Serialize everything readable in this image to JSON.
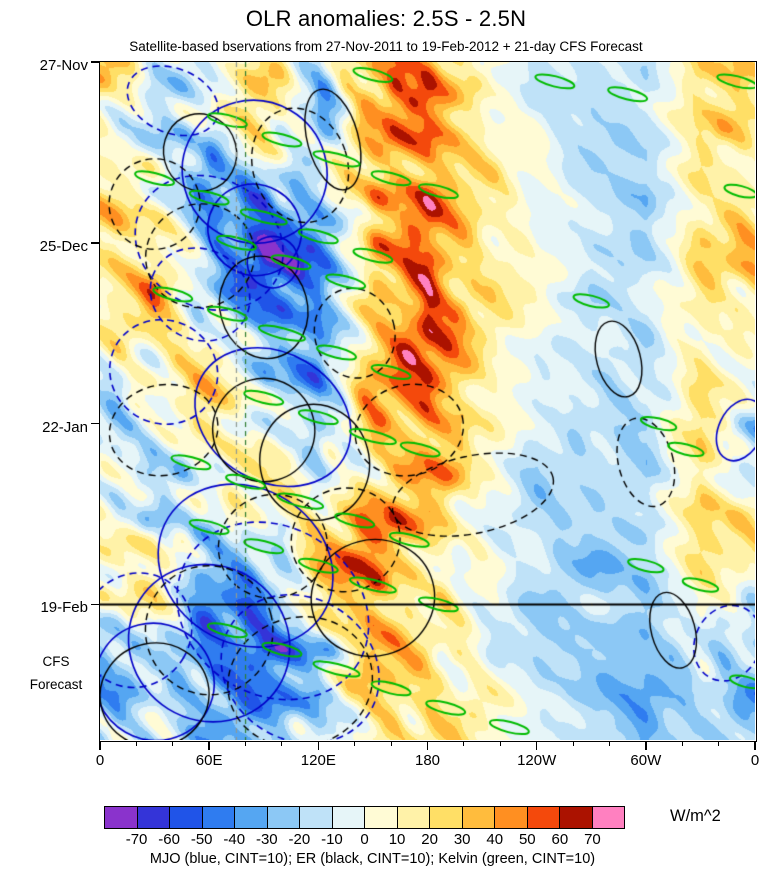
{
  "title": "OLR anomalies: 2.5S - 2.5N",
  "subtitle": "Satellite-based bservations from 27-Nov-2011 to 19-Feb-2012 + 21-day CFS Forecast",
  "legend_note": "MJO (blue, CINT=10); ER (black, CINT=10); Kelvin (green, CINT=10)",
  "colorbar": {
    "unit": "W/m^2",
    "tick_labels": [
      "-70",
      "-60",
      "-50",
      "-40",
      "-30",
      "-20",
      "-10",
      "0",
      "10",
      "20",
      "30",
      "40",
      "50",
      "60",
      "70"
    ],
    "colors": [
      "#8a33cc",
      "#3434d8",
      "#2054e8",
      "#2f7cf0",
      "#55a6f2",
      "#8cc8f5",
      "#bfe2f8",
      "#e6f5f8",
      "#fffbd5",
      "#fff2a8",
      "#ffdf66",
      "#ffbc3d",
      "#ff8f21",
      "#f4490c",
      "#ab1200",
      "#ff80c0"
    ]
  },
  "chart_data": {
    "type": "heatmap",
    "x_range": [
      0,
      360
    ],
    "t_range": [
      0,
      105
    ],
    "x_ticks": [
      {
        "pos": 0,
        "label": "0"
      },
      {
        "pos": 60,
        "label": "60E"
      },
      {
        "pos": 120,
        "label": "120E"
      },
      {
        "pos": 180,
        "label": "180"
      },
      {
        "pos": 240,
        "label": "120W"
      },
      {
        "pos": 300,
        "label": "60W"
      },
      {
        "pos": 360,
        "label": "0"
      }
    ],
    "y_ticks": [
      {
        "day": 0,
        "label": "27-Nov"
      },
      {
        "day": 28,
        "label": "25-Dec"
      },
      {
        "day": 56,
        "label": "22-Jan"
      },
      {
        "day": 84,
        "label": "19-Feb"
      }
    ],
    "forecast_start_day": 84,
    "forecast_label": [
      "CFS",
      "Forecast"
    ],
    "levels": [
      -70,
      -60,
      -50,
      -40,
      -30,
      -20,
      -10,
      0,
      10,
      20,
      30,
      40,
      50,
      60,
      70
    ],
    "grid": {
      "lons": [
        0,
        30,
        60,
        90,
        120,
        150,
        180,
        210,
        240,
        270,
        300,
        330,
        360
      ],
      "days": [
        0,
        7,
        14,
        21,
        28,
        35,
        42,
        49,
        56,
        63,
        70,
        77,
        84,
        91,
        98,
        105
      ],
      "values": [
        [
          40,
          -10,
          -10,
          20,
          -20,
          50,
          40,
          10,
          -10,
          -10,
          -20,
          30,
          30
        ],
        [
          20,
          -20,
          -10,
          30,
          -30,
          40,
          50,
          10,
          -10,
          -20,
          -10,
          30,
          20
        ],
        [
          10,
          -10,
          -30,
          20,
          -20,
          30,
          50,
          20,
          0,
          -20,
          -20,
          20,
          10
        ],
        [
          20,
          10,
          -40,
          -50,
          -20,
          40,
          50,
          20,
          0,
          -10,
          -30,
          20,
          20
        ],
        [
          30,
          20,
          -30,
          -70,
          -40,
          30,
          50,
          20,
          0,
          -10,
          -20,
          30,
          30
        ],
        [
          20,
          30,
          -20,
          -50,
          -50,
          20,
          60,
          20,
          10,
          -20,
          -10,
          20,
          20
        ],
        [
          10,
          20,
          10,
          -30,
          -40,
          30,
          60,
          20,
          0,
          -10,
          -20,
          10,
          10
        ],
        [
          -10,
          10,
          20,
          -20,
          -30,
          40,
          50,
          20,
          -10,
          -20,
          -10,
          20,
          -10
        ],
        [
          -20,
          -10,
          20,
          10,
          -30,
          30,
          50,
          10,
          -10,
          -10,
          -20,
          30,
          -20
        ],
        [
          -10,
          -20,
          10,
          20,
          -20,
          20,
          40,
          10,
          -20,
          -10,
          -30,
          20,
          -10
        ],
        [
          10,
          -10,
          -20,
          10,
          20,
          40,
          30,
          0,
          -20,
          -20,
          -10,
          30,
          10
        ],
        [
          20,
          10,
          -30,
          -20,
          30,
          50,
          20,
          0,
          -10,
          -30,
          -20,
          20,
          20
        ],
        [
          -10,
          20,
          -40,
          -50,
          20,
          50,
          10,
          -10,
          -20,
          -10,
          -30,
          10,
          -10
        ],
        [
          -20,
          -10,
          -50,
          -60,
          -20,
          40,
          20,
          0,
          -20,
          -30,
          -20,
          -10,
          -20
        ],
        [
          -30,
          -20,
          -30,
          -40,
          -30,
          30,
          30,
          10,
          -10,
          -20,
          -40,
          -20,
          -30
        ],
        [
          -20,
          -10,
          -20,
          -30,
          -20,
          20,
          30,
          10,
          0,
          -10,
          -30,
          -10,
          -20
        ]
      ]
    },
    "reference_lines": [
      {
        "lon": 75,
        "color": "#8f9a93",
        "style": "dashed"
      },
      {
        "lon": 80,
        "color": "#2f7d32",
        "style": "dashed"
      }
    ],
    "overlays": [
      {
        "name": "MJO",
        "color": "#0000c8",
        "width": 1.6,
        "dash_pattern": [
          7,
          5
        ],
        "ellipses": [
          [
            85,
            17,
            40,
            11,
            30,
            0
          ],
          [
            85,
            26,
            26,
            7,
            30,
            0
          ],
          [
            95,
            31,
            14,
            4,
            30,
            0
          ],
          [
            95,
            55,
            45,
            10,
            30,
            0
          ],
          [
            80,
            78,
            50,
            12,
            32,
            0
          ],
          [
            60,
            90,
            45,
            12,
            32,
            0
          ],
          [
            30,
            96,
            33,
            9,
            30,
            0
          ],
          [
            352,
            57,
            12,
            5,
            25,
            0
          ],
          [
            40,
            6,
            26,
            5,
            22,
            1
          ],
          [
            60,
            28,
            42,
            10,
            28,
            1
          ],
          [
            55,
            36,
            28,
            7,
            28,
            1
          ],
          [
            35,
            48,
            30,
            8,
            28,
            1
          ],
          [
            95,
            85,
            55,
            13,
            32,
            1
          ],
          [
            110,
            94,
            45,
            11,
            32,
            1
          ],
          [
            20,
            88,
            30,
            9,
            30,
            1
          ],
          [
            345,
            90,
            18,
            6,
            25,
            1
          ]
        ]
      },
      {
        "name": "ER",
        "color": "#000000",
        "width": 1.4,
        "dash_pattern": [
          7,
          5
        ],
        "ellipses": [
          [
            128,
            12,
            14,
            8,
            -15,
            0
          ],
          [
            55,
            14,
            20,
            6,
            -15,
            0
          ],
          [
            90,
            38,
            24,
            8,
            -15,
            0
          ],
          [
            90,
            57,
            28,
            8,
            -15,
            0
          ],
          [
            118,
            62,
            30,
            9,
            -15,
            0
          ],
          [
            150,
            83,
            34,
            9,
            -15,
            0
          ],
          [
            30,
            98,
            30,
            8,
            -12,
            0
          ],
          [
            285,
            46,
            12,
            6,
            -15,
            0
          ],
          [
            315,
            88,
            12,
            6,
            -15,
            0
          ],
          [
            110,
            16,
            26,
            9,
            -18,
            1
          ],
          [
            30,
            22,
            25,
            7,
            -15,
            1
          ],
          [
            55,
            30,
            30,
            8,
            -15,
            1
          ],
          [
            140,
            42,
            22,
            7,
            -15,
            1
          ],
          [
            35,
            57,
            30,
            7,
            -12,
            1
          ],
          [
            170,
            57,
            30,
            7,
            -14,
            1
          ],
          [
            205,
            67,
            45,
            6,
            -12,
            1
          ],
          [
            95,
            75,
            30,
            8,
            -15,
            1
          ],
          [
            135,
            74,
            30,
            8,
            -15,
            1
          ],
          [
            60,
            88,
            35,
            10,
            -15,
            1
          ],
          [
            110,
            96,
            40,
            10,
            -15,
            1
          ],
          [
            300,
            62,
            15,
            7,
            -15,
            1
          ]
        ]
      },
      {
        "name": "Kelvin",
        "color": "#00bb00",
        "width": 2,
        "dash_pattern": [
          6,
          4
        ],
        "ellipses": [
          [
            150,
            2,
            11,
            0.8,
            14,
            0
          ],
          [
            250,
            3,
            11,
            0.8,
            14,
            0
          ],
          [
            350,
            3,
            11,
            0.8,
            14,
            0
          ],
          [
            290,
            5,
            11,
            0.8,
            14,
            0
          ],
          [
            70,
            9,
            11,
            0.8,
            14,
            0
          ],
          [
            100,
            12,
            11,
            0.8,
            14,
            0
          ],
          [
            130,
            15,
            13,
            0.8,
            14,
            0
          ],
          [
            160,
            18,
            11,
            0.8,
            14,
            0
          ],
          [
            186,
            20,
            11,
            0.8,
            14,
            0
          ],
          [
            352,
            20,
            9,
            0.8,
            14,
            0
          ],
          [
            30,
            18,
            11,
            0.8,
            14,
            0
          ],
          [
            60,
            21,
            11,
            0.8,
            14,
            0
          ],
          [
            90,
            24,
            13,
            0.8,
            14,
            0
          ],
          [
            120,
            27,
            11,
            0.8,
            14,
            0
          ],
          [
            150,
            30,
            11,
            0.8,
            14,
            0
          ],
          [
            75,
            28,
            11,
            0.8,
            14,
            0
          ],
          [
            105,
            31,
            11,
            0.8,
            14,
            0
          ],
          [
            135,
            34,
            11,
            0.8,
            14,
            0
          ],
          [
            270,
            37,
            10,
            0.8,
            14,
            0
          ],
          [
            40,
            36,
            11,
            0.8,
            14,
            0
          ],
          [
            70,
            39,
            11,
            0.8,
            14,
            0
          ],
          [
            100,
            42,
            13,
            0.8,
            14,
            0
          ],
          [
            130,
            45,
            11,
            0.8,
            14,
            0
          ],
          [
            160,
            48,
            11,
            0.8,
            14,
            0
          ],
          [
            90,
            52,
            11,
            0.8,
            14,
            0
          ],
          [
            120,
            55,
            11,
            0.8,
            14,
            0
          ],
          [
            150,
            58,
            13,
            0.8,
            14,
            0
          ],
          [
            176,
            60,
            11,
            0.8,
            14,
            0
          ],
          [
            307,
            56,
            10,
            0.8,
            14,
            0
          ],
          [
            322,
            60,
            10,
            0.8,
            14,
            0
          ],
          [
            50,
            62,
            11,
            0.8,
            14,
            0
          ],
          [
            80,
            65,
            11,
            0.8,
            14,
            0
          ],
          [
            110,
            68,
            13,
            0.8,
            14,
            0
          ],
          [
            140,
            71,
            11,
            0.8,
            14,
            0
          ],
          [
            170,
            74,
            11,
            0.8,
            14,
            0
          ],
          [
            60,
            72,
            11,
            0.8,
            14,
            0
          ],
          [
            90,
            75,
            11,
            0.8,
            14,
            0
          ],
          [
            120,
            78,
            11,
            0.8,
            14,
            0
          ],
          [
            150,
            81,
            13,
            0.8,
            14,
            0
          ],
          [
            186,
            84,
            11,
            0.8,
            14,
            0
          ],
          [
            300,
            78,
            10,
            0.8,
            14,
            0
          ],
          [
            70,
            88,
            11,
            0.8,
            14,
            0
          ],
          [
            100,
            91,
            11,
            0.8,
            14,
            0
          ],
          [
            130,
            94,
            13,
            0.8,
            14,
            0
          ],
          [
            160,
            97,
            11,
            0.8,
            14,
            0
          ],
          [
            190,
            100,
            11,
            0.8,
            14,
            0
          ],
          [
            330,
            81,
            10,
            0.8,
            14,
            0
          ],
          [
            355,
            96,
            9,
            0.8,
            14,
            0
          ],
          [
            225,
            103,
            11,
            0.8,
            14,
            0
          ]
        ]
      }
    ]
  }
}
